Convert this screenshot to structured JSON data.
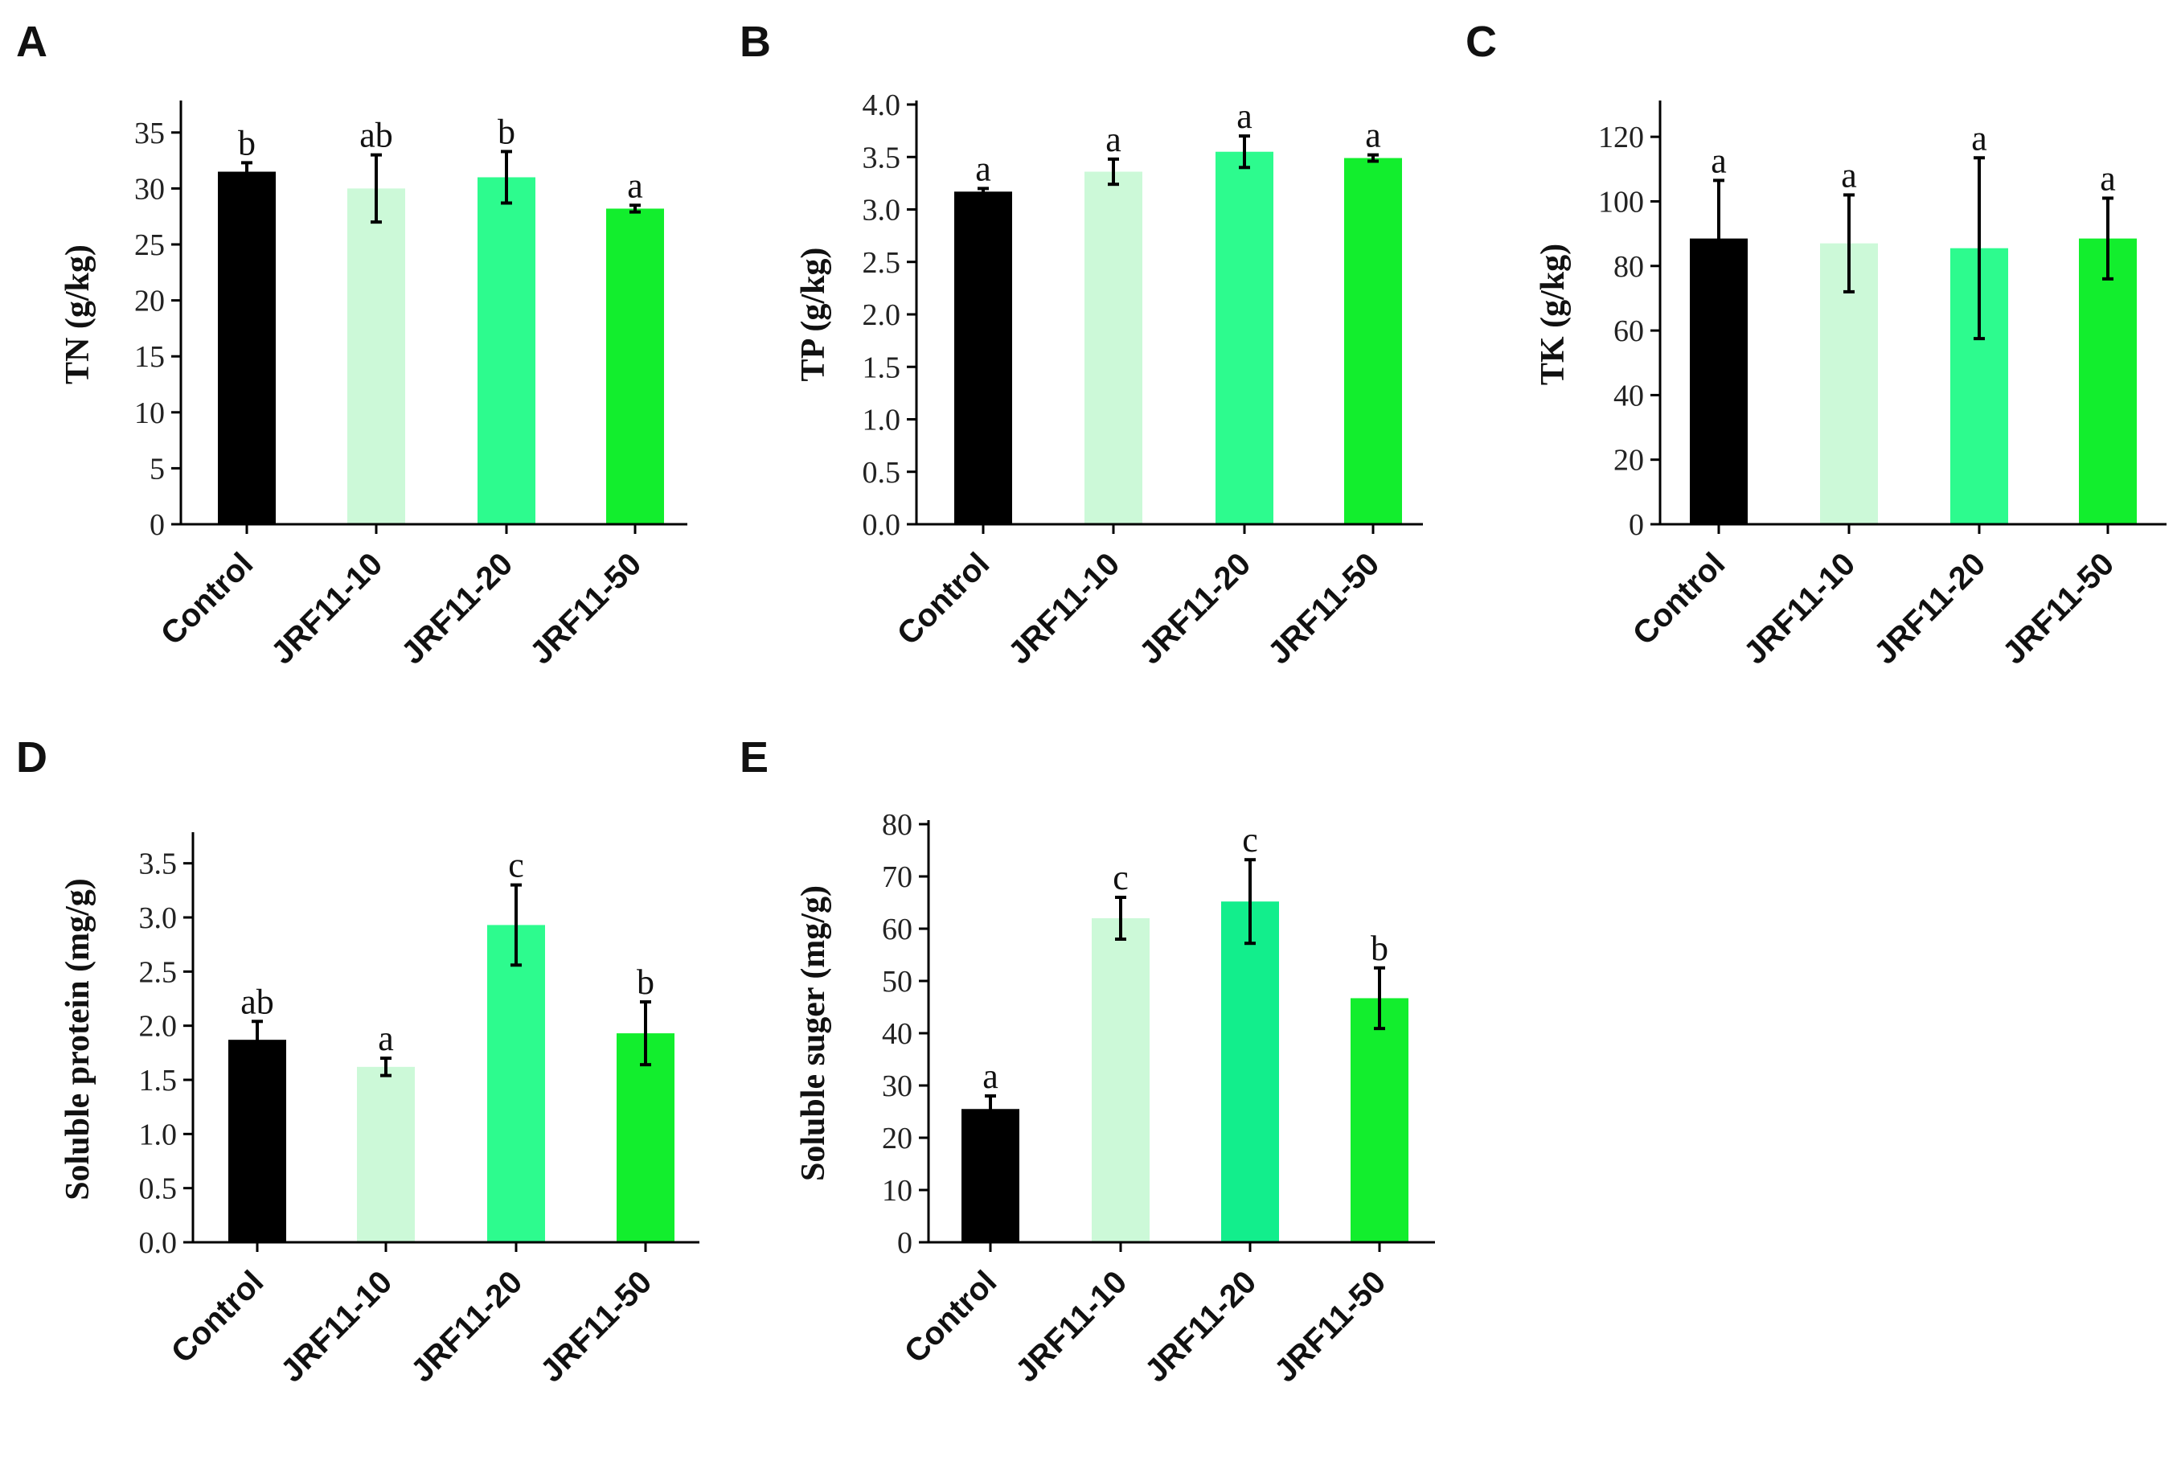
{
  "colors": {
    "control": "#000000",
    "jrf11_10": "#ccf9d8",
    "jrf11_20": "#2dfb8e",
    "jrf11_50": "#12ee2d"
  },
  "chart_data": [
    {
      "panel": "A",
      "type": "bar",
      "ylabel": "TN (g/kg)",
      "categories": [
        "Control",
        "JRF11-10",
        "JRF11-20",
        "JRF11-50"
      ],
      "values": [
        31.5,
        30.0,
        31.0,
        28.2
      ],
      "errors": [
        0.8,
        3.0,
        2.3,
        0.3
      ],
      "significance": [
        "b",
        "ab",
        "b",
        "a"
      ],
      "ylim": [
        0,
        37.5
      ],
      "yticks": [
        0,
        5,
        10,
        15,
        20,
        25,
        30,
        35
      ],
      "ytick_labels": [
        "0",
        "5",
        "10",
        "15",
        "20",
        "25",
        "30",
        "35"
      ],
      "bar_colors": [
        "#000000",
        "#ccf9d8",
        "#2dfb8e",
        "#12ee2d"
      ]
    },
    {
      "panel": "B",
      "type": "bar",
      "ylabel": "TP (g/kg)",
      "categories": [
        "Control",
        "JRF11-10",
        "JRF11-20",
        "JRF11-50"
      ],
      "values": [
        3.17,
        3.36,
        3.55,
        3.49
      ],
      "errors": [
        0.03,
        0.12,
        0.15,
        0.03
      ],
      "significance": [
        "a",
        "a",
        "a",
        "a"
      ],
      "ylim": [
        0,
        4.0
      ],
      "yticks": [
        0,
        0.5,
        1.0,
        1.5,
        2.0,
        2.5,
        3.0,
        3.5,
        4.0
      ],
      "ytick_labels": [
        "0.0",
        "0.5",
        "1.0",
        "1.5",
        "2.0",
        "2.5",
        "3.0",
        "3.5",
        "4.0"
      ],
      "bar_colors": [
        "#000000",
        "#ccf9d8",
        "#2dfb8e",
        "#12ee2d"
      ]
    },
    {
      "panel": "C",
      "type": "bar",
      "ylabel": "TK (g/kg)",
      "categories": [
        "Control",
        "JRF11-10",
        "JRF11-20",
        "JRF11-50"
      ],
      "values": [
        88.5,
        87.0,
        85.5,
        88.5
      ],
      "errors": [
        18,
        15,
        28,
        12.5
      ],
      "significance": [
        "a",
        "a",
        "a",
        "a"
      ],
      "ylim": [
        0,
        130
      ],
      "yticks": [
        0,
        20,
        40,
        60,
        80,
        100,
        120
      ],
      "ytick_labels": [
        "0",
        "20",
        "40",
        "60",
        "80",
        "100",
        "120"
      ],
      "bar_colors": [
        "#000000",
        "#ccf9d8",
        "#2dfb8e",
        "#12ee2d"
      ]
    },
    {
      "panel": "D",
      "type": "bar",
      "ylabel": "Soluble protein (mg/g)",
      "categories": [
        "Control",
        "JRF11-10",
        "JRF11-20",
        "JRF11-50"
      ],
      "values": [
        1.87,
        1.62,
        2.93,
        1.93
      ],
      "errors": [
        0.17,
        0.08,
        0.37,
        0.29
      ],
      "significance": [
        "ab",
        "a",
        "c",
        "b"
      ],
      "ylim": [
        0,
        3.75
      ],
      "yticks": [
        0,
        0.5,
        1.0,
        1.5,
        2.0,
        2.5,
        3.0,
        3.5
      ],
      "ytick_labels": [
        "0.0",
        "0.5",
        "1.0",
        "1.5",
        "2.0",
        "2.5",
        "3.0",
        "3.5"
      ],
      "bar_colors": [
        "#000000",
        "#ccf9d8",
        "#2dfb8e",
        "#12ee2d"
      ]
    },
    {
      "panel": "E",
      "type": "bar",
      "ylabel": "Soluble suger (mg/g)",
      "categories": [
        "Control",
        "JRF11-10",
        "JRF11-20",
        "JRF11-50"
      ],
      "values": [
        25.5,
        62.0,
        65.2,
        46.7
      ],
      "errors": [
        2.5,
        4.0,
        8.0,
        5.8
      ],
      "significance": [
        "a",
        "c",
        "c",
        "b"
      ],
      "ylim": [
        0,
        80
      ],
      "yticks": [
        0,
        10,
        20,
        30,
        40,
        50,
        60,
        70,
        80
      ],
      "ytick_labels": [
        "0",
        "10",
        "20",
        "30",
        "40",
        "50",
        "60",
        "70",
        "80"
      ],
      "bar_colors": [
        "#000000",
        "#ccf9d8",
        "#12ee8c",
        "#12ee2d"
      ]
    }
  ]
}
